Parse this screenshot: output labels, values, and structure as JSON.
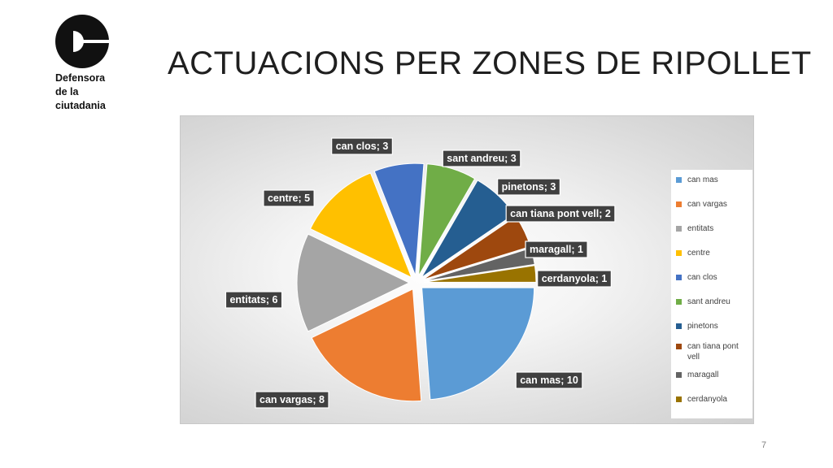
{
  "logo": {
    "lines": [
      "Defensora",
      "de la",
      "ciutadania"
    ],
    "icon": "defensora-logo-mark"
  },
  "slide": {
    "title": "ACTUACIONS PER ZONES DE RIPOLLET",
    "page_number": "7"
  },
  "chart_data": {
    "type": "pie",
    "exploded": true,
    "legend_position": "right",
    "slices": [
      {
        "label": "can mas",
        "value": 10,
        "data_label": "can mas; 10",
        "color": "#5B9BD5"
      },
      {
        "label": "can vargas",
        "value": 8,
        "data_label": "can vargas; 8",
        "color": "#ED7D31"
      },
      {
        "label": "entitats",
        "value": 6,
        "data_label": "entitats; 6",
        "color": "#A5A5A5"
      },
      {
        "label": "centre",
        "value": 5,
        "data_label": "centre; 5",
        "color": "#FFC000"
      },
      {
        "label": "can clos",
        "value": 3,
        "data_label": "can clos; 3",
        "color": "#4472C4"
      },
      {
        "label": "sant andreu",
        "value": 3,
        "data_label": "sant andreu; 3",
        "color": "#70AD47"
      },
      {
        "label": "pinetons",
        "value": 3,
        "data_label": "pinetons; 3",
        "color": "#255E91"
      },
      {
        "label": "can tiana pont vell",
        "value": 2,
        "data_label": "can tiana pont vell; 2",
        "color": "#9E480E"
      },
      {
        "label": "maragall",
        "value": 1,
        "data_label": "maragall; 1",
        "color": "#636363"
      },
      {
        "label": "cerdanyola",
        "value": 1,
        "data_label": "cerdanyola; 1",
        "color": "#997300"
      }
    ]
  }
}
